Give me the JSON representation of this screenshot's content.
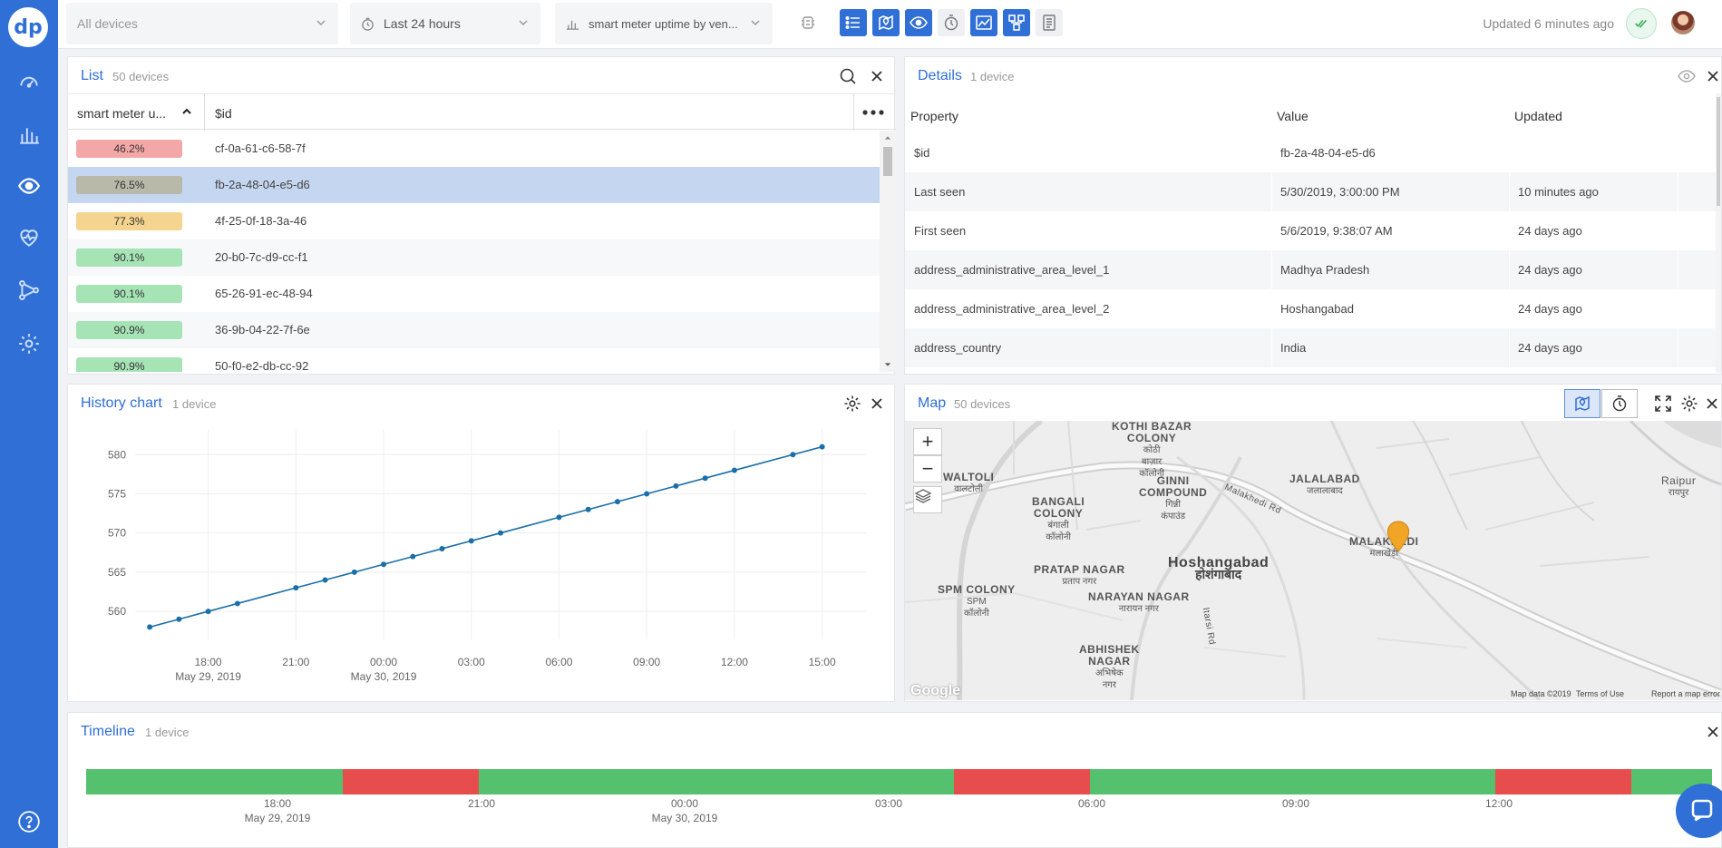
{
  "topbar": {
    "devices_filter": "All devices",
    "time_range": "Last 24 hours",
    "metric": "smart meter uptime by ven...",
    "updated_text": "Updated 6 minutes ago"
  },
  "list_panel": {
    "title": "List",
    "subtitle": "50 devices",
    "col_metric": "smart meter u...",
    "col_id": "$id",
    "rows": [
      {
        "value": "46.2%",
        "id": "cf-0a-61-c6-58-7f",
        "color": "#f4a7a7"
      },
      {
        "value": "76.5%",
        "id": "fb-2a-48-04-e5-d6",
        "color": "#b9b9a9"
      },
      {
        "value": "77.3%",
        "id": "4f-25-0f-18-3a-46",
        "color": "#f4d48e"
      },
      {
        "value": "90.1%",
        "id": "20-b0-7c-d9-cc-f1",
        "color": "#a6e4b6"
      },
      {
        "value": "90.1%",
        "id": "65-26-91-ec-48-94",
        "color": "#a6e4b6"
      },
      {
        "value": "90.9%",
        "id": "36-9b-04-22-7f-6e",
        "color": "#a6e4b6"
      },
      {
        "value": "90.9%",
        "id": "50-f0-e2-db-cc-92",
        "color": "#a6e4b6"
      }
    ]
  },
  "details_panel": {
    "title": "Details",
    "subtitle": "1 device",
    "col_property": "Property",
    "col_value": "Value",
    "col_updated": "Updated",
    "rows": [
      {
        "property": "$id",
        "value": "fb-2a-48-04-e5-d6",
        "updated": ""
      },
      {
        "property": "Last seen",
        "value": "5/30/2019, 3:00:00 PM",
        "updated": "10 minutes ago"
      },
      {
        "property": "First seen",
        "value": "5/6/2019, 9:38:07 AM",
        "updated": "24 days ago"
      },
      {
        "property": "address_administrative_area_level_1",
        "value": "Madhya Pradesh",
        "updated": "24 days ago"
      },
      {
        "property": "address_administrative_area_level_2",
        "value": "Hoshangabad",
        "updated": "24 days ago"
      },
      {
        "property": "address_country",
        "value": "India",
        "updated": "24 days ago"
      }
    ]
  },
  "history_panel": {
    "title": "History chart",
    "subtitle": "1 device"
  },
  "chart_data": {
    "type": "line",
    "title": "",
    "xlabel": "",
    "ylabel": "",
    "ylim": [
      557,
      582
    ],
    "yticks": [
      560,
      565,
      570,
      575,
      580
    ],
    "xticks": [
      {
        "hour": 18,
        "label": "18:00",
        "sub": "May 29, 2019"
      },
      {
        "hour": 21,
        "label": "21:00",
        "sub": ""
      },
      {
        "hour": 24,
        "label": "00:00",
        "sub": "May 30, 2019"
      },
      {
        "hour": 27,
        "label": "03:00",
        "sub": ""
      },
      {
        "hour": 30,
        "label": "06:00",
        "sub": ""
      },
      {
        "hour": 33,
        "label": "09:00",
        "sub": ""
      },
      {
        "hour": 36,
        "label": "12:00",
        "sub": ""
      },
      {
        "hour": 39,
        "label": "15:00",
        "sub": ""
      }
    ],
    "xlim": [
      15.5,
      40.5
    ],
    "points": [
      {
        "hour": 16,
        "y": 558
      },
      {
        "hour": 17,
        "y": 559
      },
      {
        "hour": 18,
        "y": 560
      },
      {
        "hour": 19,
        "y": 561
      },
      {
        "hour": 21,
        "y": 563
      },
      {
        "hour": 22,
        "y": 564
      },
      {
        "hour": 23,
        "y": 565
      },
      {
        "hour": 24,
        "y": 566
      },
      {
        "hour": 25,
        "y": 567
      },
      {
        "hour": 26,
        "y": 568
      },
      {
        "hour": 27,
        "y": 569
      },
      {
        "hour": 28,
        "y": 570
      },
      {
        "hour": 30,
        "y": 572
      },
      {
        "hour": 31,
        "y": 573
      },
      {
        "hour": 32,
        "y": 574
      },
      {
        "hour": 33,
        "y": 575
      },
      {
        "hour": 34,
        "y": 576
      },
      {
        "hour": 35,
        "y": 577
      },
      {
        "hour": 36,
        "y": 578
      },
      {
        "hour": 38,
        "y": 580
      },
      {
        "hour": 39,
        "y": 581
      }
    ],
    "line_color": "#1a6fa8"
  },
  "map_panel": {
    "title": "Map",
    "subtitle": "50 devices",
    "zoom_in": "+",
    "zoom_out": "−",
    "footer_data": "Map data ©2019",
    "footer_terms": "Terms of Use",
    "footer_report": "Report a map error",
    "google": "Google",
    "labels": [
      {
        "name": "KOTHI BAZAR\nCOLONY",
        "local": "कोठी\nबाज़ार\nकॉलोनी"
      },
      {
        "name": "WALTOLI",
        "local": "वालटोली"
      },
      {
        "name": "GINNI\nCOMPOUND",
        "local": "गिन्नी\nकंपाउंड"
      },
      {
        "name": "JALALABAD",
        "local": "जलालाबाद"
      },
      {
        "name": "Raipur",
        "local": "रायपुर"
      },
      {
        "name": "BANGALI\nCOLONY",
        "local": "बंगाली\nकॉलोनी"
      },
      {
        "name": "MALAKHEDI",
        "local": "मलाखेड़ी"
      },
      {
        "name": "Hoshangabad",
        "local": "होशंगाबाद"
      },
      {
        "name": "PRATAP NAGAR",
        "local": "प्रताप नगर"
      },
      {
        "name": "SPM COLONY",
        "local": "SPM\nकॉलोनी"
      },
      {
        "name": "NARAYAN NAGAR",
        "local": "नारायन नगर"
      },
      {
        "name": "ABHISHEK\nNAGAR",
        "local": "अभिषेक\nनगर"
      },
      {
        "name": "Malakhedi Rd",
        "local": ""
      },
      {
        "name": "Itarsi Rd",
        "local": ""
      }
    ]
  },
  "timeline_panel": {
    "title": "Timeline",
    "subtitle": "1 device",
    "segments": [
      {
        "start": 0,
        "end": 0.261,
        "color": "#55c16e"
      },
      {
        "start": 0.261,
        "end": 0.399,
        "color": "#e84d4d"
      },
      {
        "start": 0.399,
        "end": 0.881,
        "color": "#55c16e"
      },
      {
        "start": 0.881,
        "end": 1.019,
        "color": "#e84d4d"
      },
      {
        "start": 1.019,
        "end": 1.431,
        "color": "#55c16e"
      },
      {
        "start": 1.431,
        "end": 1.569,
        "color": "#e84d4d"
      },
      {
        "start": 1.569,
        "end": 1.651,
        "color": "#55c16e"
      }
    ],
    "ticks": [
      {
        "label": "18:00",
        "sub": "May 29, 2019"
      },
      {
        "label": "21:00",
        "sub": ""
      },
      {
        "label": "00:00",
        "sub": "May 30, 2019"
      },
      {
        "label": "03:00",
        "sub": ""
      },
      {
        "label": "06:00",
        "sub": ""
      },
      {
        "label": "09:00",
        "sub": ""
      },
      {
        "label": "12:00",
        "sub": ""
      }
    ]
  },
  "colors": {
    "accent": "#2f6fd6",
    "ok": "#55c16e",
    "bad": "#e84d4d"
  }
}
